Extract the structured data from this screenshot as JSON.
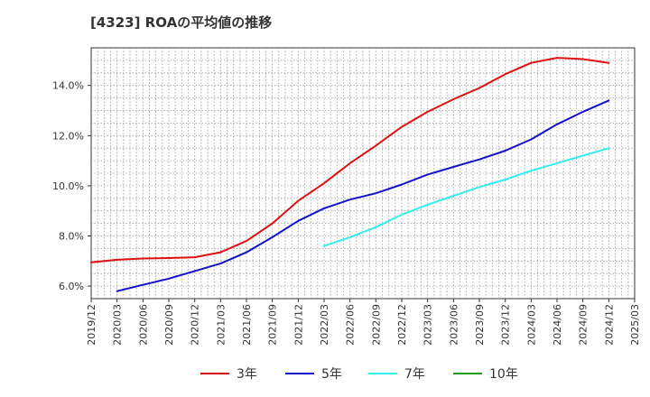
{
  "chart_data": {
    "type": "line",
    "title": "[4323]  ROAの平均値の推移",
    "x": [
      "2019/12",
      "2020/03",
      "2020/06",
      "2020/09",
      "2020/12",
      "2021/03",
      "2021/06",
      "2021/09",
      "2021/12",
      "2022/03",
      "2022/06",
      "2022/09",
      "2022/12",
      "2023/03",
      "2023/06",
      "2023/09",
      "2023/12",
      "2024/03",
      "2024/06",
      "2024/09",
      "2024/12"
    ],
    "x_ticks": [
      "2019/12",
      "2020/03",
      "2020/06",
      "2020/09",
      "2020/12",
      "2021/03",
      "2021/06",
      "2021/09",
      "2021/12",
      "2022/03",
      "2022/06",
      "2022/09",
      "2022/12",
      "2023/03",
      "2023/06",
      "2023/09",
      "2023/12",
      "2024/03",
      "2024/06",
      "2024/09",
      "2024/12",
      "2025/03"
    ],
    "y_ticks": [
      "6.0%",
      "8.0%",
      "10.0%",
      "12.0%",
      "14.0%"
    ],
    "y_tick_values": [
      6,
      8,
      10,
      12,
      14
    ],
    "ylim": [
      5.5,
      15.5
    ],
    "grid": true,
    "legend_position": "bottom",
    "series": [
      {
        "name": "3年",
        "color": "#dd1111",
        "values": [
          6.95,
          7.05,
          7.1,
          7.12,
          7.15,
          7.35,
          7.8,
          8.5,
          9.4,
          10.1,
          10.9,
          11.6,
          12.35,
          12.95,
          13.45,
          13.9,
          14.45,
          14.9,
          15.1,
          15.05,
          14.9
        ]
      },
      {
        "name": "5年",
        "color": "#1111cc",
        "values": [
          null,
          5.8,
          6.05,
          6.3,
          6.6,
          6.9,
          7.35,
          7.95,
          8.6,
          9.1,
          9.45,
          9.7,
          10.05,
          10.45,
          10.75,
          11.05,
          11.4,
          11.85,
          12.45,
          12.95,
          13.4
        ]
      },
      {
        "name": "7年",
        "color": "#33eeee",
        "values": [
          null,
          null,
          null,
          null,
          null,
          null,
          null,
          null,
          null,
          7.6,
          7.95,
          8.35,
          8.85,
          9.25,
          9.6,
          9.95,
          10.25,
          10.6,
          10.9,
          11.2,
          11.5
        ]
      },
      {
        "name": "10年",
        "color": "#229922",
        "values": [
          null,
          null,
          null,
          null,
          null,
          null,
          null,
          null,
          null,
          null,
          null,
          null,
          null,
          null,
          null,
          null,
          null,
          null,
          null,
          null,
          null
        ]
      }
    ]
  }
}
